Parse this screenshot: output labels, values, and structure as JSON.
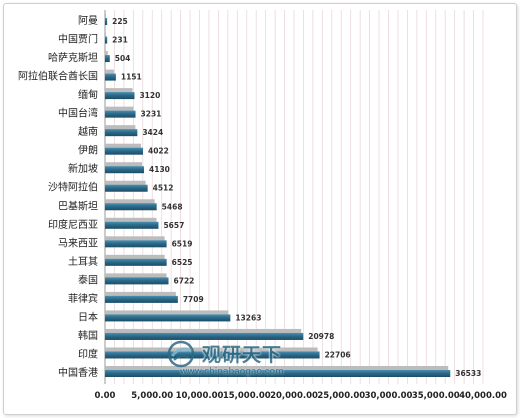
{
  "chart_data": {
    "type": "bar",
    "orientation": "horizontal",
    "categories": [
      "阿曼",
      "中国贾门",
      "哈萨克斯坦",
      "阿拉伯联合酋长国",
      "缅甸",
      "中国台湾",
      "越南",
      "伊朗",
      "新加坡",
      "沙特阿拉伯",
      "巴基斯坦",
      "印度尼西亚",
      "马来西亚",
      "土耳其",
      "泰国",
      "菲律宾",
      "日本",
      "韩国",
      "印度",
      "中国香港"
    ],
    "values": [
      225,
      231,
      504,
      1151,
      3120,
      3231,
      3424,
      4022,
      4130,
      4512,
      5468,
      5657,
      6519,
      6525,
      6722,
      7709,
      13263,
      20978,
      22706,
      36533
    ],
    "xlim": [
      0,
      40000
    ],
    "x_tick_values": [
      0,
      5000,
      10000,
      15000,
      20000,
      25000,
      30000,
      35000,
      40000
    ],
    "x_ticks": [
      "0.00",
      "5,000.00",
      "10,000.00",
      "15,000.00",
      "20,000.00",
      "25,000.00",
      "30,000.00",
      "35,000.00",
      "40,000.00"
    ],
    "title": "",
    "xlabel": "",
    "ylabel": "",
    "grid": true,
    "legend": "none"
  },
  "colors": {
    "bar_top": "#4a8fb1",
    "bar_mid": "#2b6a8a",
    "bar_bottom": "#1c4c66",
    "bar_shadow": "#bcbcbc",
    "grid": "#ead6da",
    "axis": "#9a9a9a"
  },
  "watermark": {
    "brand": "观研天下",
    "url": "www.chinabaogao.com",
    "logo_icon": "chinabaogao-logo-icon"
  }
}
